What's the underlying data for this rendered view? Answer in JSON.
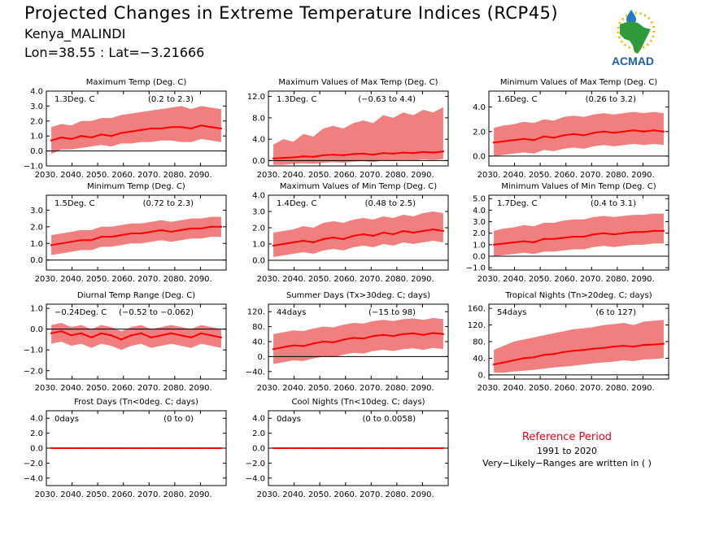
{
  "header": {
    "title": "Projected Changes in Extreme Temperature Indices (RCP45)",
    "location": "Kenya_MALINDI",
    "coords": "Lon=38.55 : Lat=−3.21666"
  },
  "logo": {
    "text": "ACMAD",
    "icon": "africa-map-logo"
  },
  "reference": {
    "title": "Reference Period",
    "years": "1991 to 2020",
    "note": "Very−Likely−Ranges are written in ( )"
  },
  "colors": {
    "line": "#ff0000",
    "band": "#f08080",
    "zero": "#000000",
    "accent": "#e3001b"
  },
  "chart_data": [
    {
      "type": "line",
      "title": "Maximum Temp (Deg. C)",
      "summary": "1.3Deg. C",
      "range": "(0.2 to 2.3)",
      "x_start": 2030,
      "x_end": 2100,
      "ylim": [
        -1.0,
        4.0
      ],
      "yticks": [
        -1.0,
        0.0,
        1.0,
        2.0,
        3.0,
        4.0
      ],
      "ytick_labels": [
        "−1.0",
        "0.0",
        "1.0",
        "2.0",
        "3.0",
        "4.0"
      ],
      "xtick_labels": [
        "2030.",
        "2040.",
        "2050.",
        "2060.",
        "2070.",
        "2080.",
        "2090."
      ],
      "series": [
        {
          "values": [
            0.7,
            0.9,
            0.8,
            1.0,
            0.9,
            1.1,
            1.0,
            1.2,
            1.3,
            1.4,
            1.5,
            1.5,
            1.6,
            1.6,
            1.5,
            1.7,
            1.6,
            1.5
          ]
        }
      ],
      "band_low": [
        -0.2,
        0.1,
        0.1,
        0.2,
        0.3,
        0.4,
        0.3,
        0.5,
        0.5,
        0.6,
        0.6,
        0.7,
        0.7,
        0.6,
        0.6,
        0.8,
        0.7,
        0.6
      ],
      "band_high": [
        1.6,
        1.8,
        1.7,
        2.0,
        2.0,
        2.2,
        2.2,
        2.4,
        2.5,
        2.6,
        2.7,
        2.8,
        2.9,
        3.0,
        2.8,
        3.0,
        2.9,
        2.8
      ]
    },
    {
      "type": "line",
      "title": "Maximum Values of Max Temp (Deg. C)",
      "summary": "1.3Deg. C",
      "range": "(−0.63 to 4.4)",
      "x_start": 2030,
      "x_end": 2100,
      "ylim": [
        -1.0,
        13.0
      ],
      "yticks": [
        0.0,
        4.0,
        8.0,
        12.0
      ],
      "ytick_labels": [
        "0.0",
        "4.0",
        "8.0",
        "12.0"
      ],
      "xtick_labels": [
        "2030.",
        "2040.",
        "2050.",
        "2060.",
        "2070.",
        "2080.",
        "2090."
      ],
      "series": [
        {
          "values": [
            0.4,
            0.5,
            0.6,
            0.8,
            0.7,
            1.0,
            1.1,
            1.0,
            1.2,
            1.3,
            1.1,
            1.4,
            1.3,
            1.5,
            1.4,
            1.6,
            1.5,
            1.7
          ]
        }
      ],
      "band_low": [
        -0.8,
        -0.8,
        -0.6,
        -0.5,
        -0.6,
        -0.4,
        -0.3,
        -0.4,
        -0.2,
        -0.1,
        -0.3,
        0.0,
        -0.1,
        0.1,
        0.0,
        0.2,
        0.1,
        0.3
      ],
      "band_high": [
        3.0,
        4.0,
        3.5,
        5.0,
        4.5,
        6.0,
        6.5,
        6.0,
        7.0,
        7.5,
        7.0,
        8.5,
        8.0,
        9.0,
        8.5,
        9.5,
        9.0,
        10.0
      ]
    },
    {
      "type": "line",
      "title": "Minimum Values of Max Temp (Deg. C)",
      "summary": "1.6Deg. C",
      "range": "(0.26 to 3.2)",
      "x_start": 2030,
      "x_end": 2100,
      "ylim": [
        -0.8,
        5.3
      ],
      "yticks": [
        0.0,
        2.0,
        4.0
      ],
      "ytick_labels": [
        "0.0",
        "2.0",
        "4.0"
      ],
      "xtick_labels": [
        "2030.",
        "2040.",
        "2050.",
        "2060.",
        "2070.",
        "2080.",
        "2090."
      ],
      "series": [
        {
          "values": [
            1.1,
            1.2,
            1.3,
            1.4,
            1.3,
            1.6,
            1.5,
            1.7,
            1.8,
            1.7,
            1.9,
            2.0,
            1.9,
            2.0,
            2.1,
            2.0,
            2.1,
            2.0
          ]
        }
      ],
      "band_low": [
        0.0,
        0.1,
        0.2,
        0.3,
        0.2,
        0.5,
        0.4,
        0.6,
        0.7,
        0.6,
        0.8,
        0.9,
        0.8,
        0.9,
        1.0,
        0.9,
        1.0,
        0.9
      ],
      "band_high": [
        2.3,
        2.5,
        2.6,
        2.8,
        2.7,
        3.0,
        2.9,
        3.2,
        3.3,
        3.2,
        3.4,
        3.5,
        3.4,
        3.5,
        3.6,
        3.5,
        3.6,
        3.5
      ]
    },
    {
      "type": "line",
      "title": "Minimum Temp (Deg. C)",
      "summary": "1.5Deg. C",
      "range": "(0.72 to 2.3)",
      "x_start": 2030,
      "x_end": 2100,
      "ylim": [
        -0.6,
        3.9
      ],
      "yticks": [
        0.0,
        1.0,
        2.0,
        3.0
      ],
      "ytick_labels": [
        "0.0",
        "1.0",
        "2.0",
        "3.0"
      ],
      "xtick_labels": [
        "2030.",
        "2040.",
        "2050.",
        "2060.",
        "2070.",
        "2080.",
        "2090."
      ],
      "series": [
        {
          "values": [
            0.9,
            1.0,
            1.1,
            1.2,
            1.2,
            1.4,
            1.4,
            1.5,
            1.6,
            1.6,
            1.7,
            1.8,
            1.7,
            1.8,
            1.9,
            1.9,
            2.0,
            2.0
          ]
        }
      ],
      "band_low": [
        0.3,
        0.4,
        0.5,
        0.6,
        0.6,
        0.8,
        0.8,
        0.9,
        1.0,
        1.0,
        1.1,
        1.2,
        1.1,
        1.2,
        1.3,
        1.3,
        1.4,
        1.4
      ],
      "band_high": [
        1.5,
        1.6,
        1.7,
        1.8,
        1.8,
        2.0,
        2.0,
        2.1,
        2.2,
        2.2,
        2.3,
        2.4,
        2.3,
        2.4,
        2.5,
        2.5,
        2.6,
        2.6
      ]
    },
    {
      "type": "line",
      "title": "Maximum Values of Min Temp (Deg. C)",
      "summary": "1.4Deg. C",
      "range": "(0.48 to 2.5)",
      "x_start": 2030,
      "x_end": 2100,
      "ylim": [
        -0.6,
        4.0
      ],
      "yticks": [
        0.0,
        1.0,
        2.0,
        3.0,
        4.0
      ],
      "ytick_labels": [
        "0.0",
        "1.0",
        "2.0",
        "3.0",
        "4.0"
      ],
      "xtick_labels": [
        "2030.",
        "2040.",
        "2050.",
        "2060.",
        "2070.",
        "2080.",
        "2090."
      ],
      "series": [
        {
          "values": [
            0.9,
            1.0,
            1.1,
            1.2,
            1.1,
            1.3,
            1.4,
            1.3,
            1.5,
            1.6,
            1.5,
            1.7,
            1.6,
            1.8,
            1.7,
            1.8,
            1.9,
            1.8
          ]
        }
      ],
      "band_low": [
        0.2,
        0.3,
        0.4,
        0.5,
        0.4,
        0.6,
        0.7,
        0.6,
        0.8,
        0.9,
        0.8,
        1.0,
        0.9,
        1.1,
        1.0,
        1.1,
        1.2,
        1.1
      ],
      "band_high": [
        1.7,
        1.8,
        1.9,
        2.1,
        2.0,
        2.3,
        2.4,
        2.3,
        2.5,
        2.6,
        2.5,
        2.7,
        2.6,
        2.8,
        2.7,
        2.9,
        3.0,
        2.9
      ]
    },
    {
      "type": "line",
      "title": "Minimum Values of Min Temp (Deg. C)",
      "summary": "1.7Deg. C",
      "range": "(0.4 to 3.1)",
      "x_start": 2030,
      "x_end": 2100,
      "ylim": [
        -1.2,
        5.3
      ],
      "yticks": [
        -1.0,
        0.0,
        1.0,
        2.0,
        3.0,
        4.0,
        5.0
      ],
      "ytick_labels": [
        "−1.0",
        "0.0",
        "1.0",
        "2.0",
        "3.0",
        "4.0",
        "5.0"
      ],
      "xtick_labels": [
        "2030.",
        "2040.",
        "2050.",
        "2060.",
        "2070.",
        "2080.",
        "2090."
      ],
      "series": [
        {
          "values": [
            1.0,
            1.1,
            1.2,
            1.3,
            1.2,
            1.5,
            1.5,
            1.6,
            1.7,
            1.7,
            1.9,
            2.0,
            1.9,
            2.0,
            2.1,
            2.1,
            2.2,
            2.2
          ]
        }
      ],
      "band_low": [
        0.0,
        0.1,
        0.2,
        0.3,
        0.2,
        0.4,
        0.4,
        0.5,
        0.6,
        0.6,
        0.8,
        0.9,
        0.8,
        0.9,
        1.0,
        1.0,
        1.1,
        1.1
      ],
      "band_high": [
        2.2,
        2.4,
        2.5,
        2.7,
        2.6,
        2.9,
        2.9,
        3.1,
        3.2,
        3.2,
        3.4,
        3.5,
        3.4,
        3.5,
        3.6,
        3.6,
        3.7,
        3.7
      ]
    },
    {
      "type": "line",
      "title": "Diurnal Temp Range (Deg. C)",
      "summary": "−0.24Deg. C",
      "range": "(−0.52 to −0.062)",
      "x_start": 2030,
      "x_end": 2100,
      "ylim": [
        -2.4,
        1.2
      ],
      "yticks": [
        -2.0,
        -1.0,
        0.0,
        1.0
      ],
      "ytick_labels": [
        "−2.0",
        "−1.0",
        "0.0",
        "1.0"
      ],
      "xtick_labels": [
        "2030.",
        "2040.",
        "2050.",
        "2060.",
        "2070.",
        "2080.",
        "2090."
      ],
      "series": [
        {
          "values": [
            -0.2,
            -0.1,
            -0.3,
            -0.2,
            -0.4,
            -0.2,
            -0.3,
            -0.5,
            -0.3,
            -0.2,
            -0.4,
            -0.3,
            -0.2,
            -0.3,
            -0.4,
            -0.2,
            -0.3,
            -0.4
          ]
        }
      ],
      "band_low": [
        -0.7,
        -0.6,
        -0.8,
        -0.7,
        -0.9,
        -0.7,
        -0.8,
        -1.0,
        -0.8,
        -0.7,
        -0.9,
        -0.8,
        -0.7,
        -0.8,
        -0.9,
        -0.7,
        -0.8,
        -0.9
      ],
      "band_high": [
        0.2,
        0.3,
        0.1,
        0.2,
        0.0,
        0.2,
        0.1,
        -0.1,
        0.1,
        0.2,
        0.0,
        0.1,
        0.2,
        0.1,
        0.0,
        0.2,
        0.1,
        0.0
      ]
    },
    {
      "type": "line",
      "title": "Summer Days (Tx>30deg. C; days)",
      "summary": "44days",
      "range": "(−15 to 98)",
      "x_start": 2030,
      "x_end": 2100,
      "ylim": [
        -60,
        140
      ],
      "yticks": [
        -40,
        0,
        40,
        80,
        120
      ],
      "ytick_labels": [
        "−40.",
        "0.",
        "40.",
        "80.",
        "120."
      ],
      "xtick_labels": [
        "2030.",
        "2040.",
        "2050.",
        "2060.",
        "2070.",
        "2080.",
        "2090."
      ],
      "series": [
        {
          "values": [
            20,
            25,
            30,
            28,
            35,
            40,
            38,
            45,
            50,
            48,
            55,
            58,
            55,
            60,
            62,
            58,
            63,
            60
          ]
        }
      ],
      "band_low": [
        -20,
        -15,
        -10,
        -12,
        -5,
        0,
        -2,
        5,
        10,
        8,
        15,
        18,
        15,
        20,
        22,
        18,
        23,
        20
      ],
      "band_high": [
        60,
        65,
        70,
        68,
        75,
        80,
        78,
        85,
        90,
        88,
        95,
        98,
        95,
        100,
        102,
        98,
        103,
        100
      ]
    },
    {
      "type": "line",
      "title": "Tropical Nights (Tn>20deg. C; days)",
      "summary": "54days",
      "range": "(6 to 127)",
      "x_start": 2030,
      "x_end": 2100,
      "ylim": [
        -10,
        170
      ],
      "yticks": [
        0,
        40,
        80,
        120,
        160
      ],
      "ytick_labels": [
        "0.",
        "40.",
        "80.",
        "120.",
        "160."
      ],
      "xtick_labels": [
        "2030.",
        "2040.",
        "2050.",
        "2060.",
        "2070.",
        "2080.",
        "2090."
      ],
      "series": [
        {
          "values": [
            25,
            30,
            35,
            40,
            42,
            48,
            50,
            55,
            58,
            60,
            63,
            65,
            68,
            70,
            68,
            72,
            73,
            75
          ]
        }
      ],
      "band_low": [
        5,
        5,
        8,
        10,
        12,
        15,
        18,
        20,
        22,
        25,
        28,
        30,
        32,
        35,
        33,
        37,
        38,
        40
      ],
      "band_high": [
        60,
        70,
        80,
        85,
        90,
        95,
        100,
        105,
        110,
        112,
        115,
        120,
        122,
        125,
        120,
        128,
        130,
        132
      ]
    },
    {
      "type": "line",
      "title": "Frost Days (Tn<0deg. C; days)",
      "summary": "0days",
      "range": "(0 to 0)",
      "x_start": 2030,
      "x_end": 2100,
      "ylim": [
        -5.0,
        5.0
      ],
      "yticks": [
        -4.0,
        -2.0,
        0.0,
        2.0,
        4.0
      ],
      "ytick_labels": [
        "−4.0",
        "−2.0",
        "0.0",
        "2.0",
        "4.0"
      ],
      "xtick_labels": [
        "2030.",
        "2040.",
        "2050.",
        "2060.",
        "2070.",
        "2080.",
        "2090."
      ],
      "series": [
        {
          "values": [
            0,
            0,
            0,
            0,
            0,
            0,
            0,
            0,
            0,
            0,
            0,
            0,
            0,
            0,
            0,
            0,
            0,
            0
          ]
        }
      ],
      "band_low": [
        0,
        0,
        0,
        0,
        0,
        0,
        0,
        0,
        0,
        0,
        0,
        0,
        0,
        0,
        0,
        0,
        0,
        0
      ],
      "band_high": [
        0,
        0,
        0,
        0,
        0,
        0,
        0,
        0,
        0,
        0,
        0,
        0,
        0,
        0,
        0,
        0,
        0,
        0
      ]
    },
    {
      "type": "line",
      "title": "Cool Nights (Tn<10deg. C; days)",
      "summary": "0days",
      "range": "(0 to 0.0058)",
      "x_start": 2030,
      "x_end": 2100,
      "ylim": [
        -5.0,
        5.0
      ],
      "yticks": [
        -4.0,
        -2.0,
        0.0,
        2.0,
        4.0
      ],
      "ytick_labels": [
        "−4.0",
        "−2.0",
        "0.0",
        "2.0",
        "4.0"
      ],
      "xtick_labels": [
        "2030.",
        "2040.",
        "2050.",
        "2060.",
        "2070.",
        "2080.",
        "2090."
      ],
      "series": [
        {
          "values": [
            0,
            0,
            0,
            0,
            0,
            0,
            0,
            0,
            0,
            0,
            0,
            0,
            0,
            0,
            0,
            0,
            0,
            0
          ]
        }
      ],
      "band_low": [
        0,
        0,
        0,
        0,
        0,
        0,
        0,
        0,
        0,
        0,
        0,
        0,
        0,
        0,
        0,
        0,
        0,
        0
      ],
      "band_high": [
        0,
        0,
        0,
        0,
        0,
        0,
        0,
        0,
        0,
        0,
        0,
        0,
        0,
        0,
        0,
        0,
        0,
        0
      ]
    }
  ]
}
